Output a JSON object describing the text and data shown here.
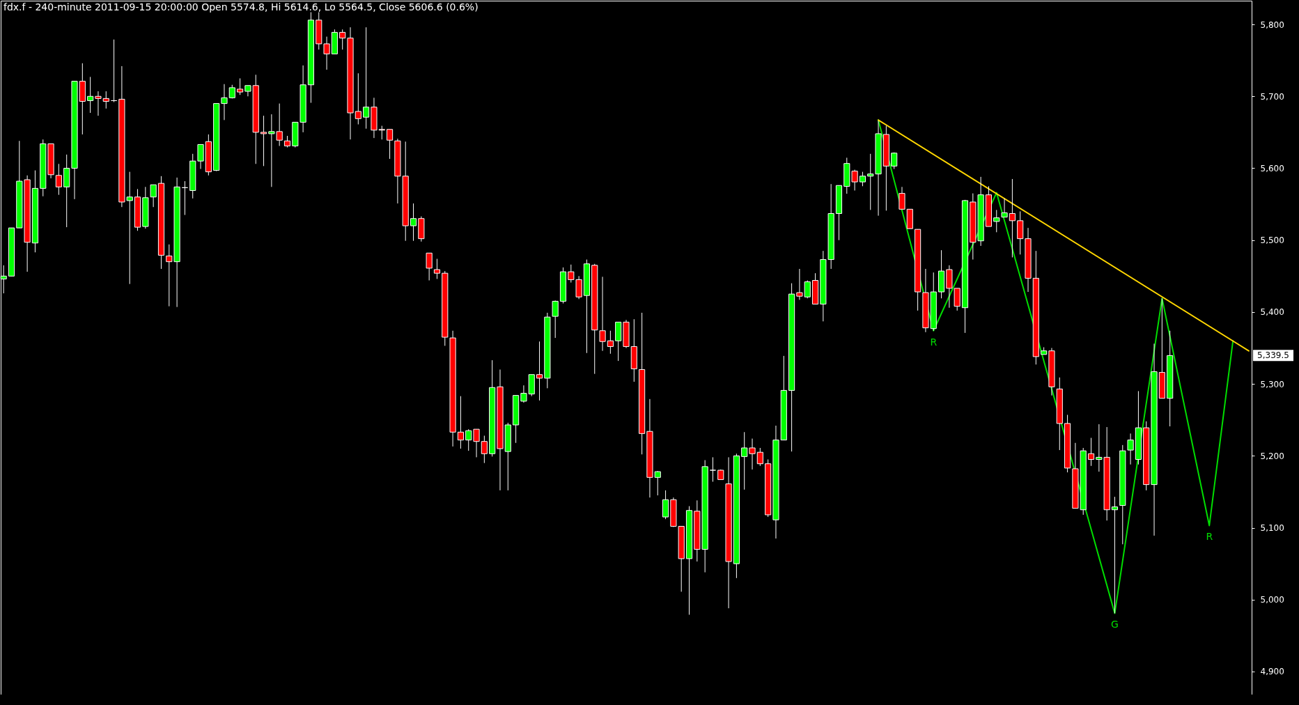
{
  "chart_data": {
    "type": "candlestick",
    "title": "fdx.f - 240-minute 2011-09-15 20:00:00 Open 5574.8, Hi 5614.6, Lo 5564.5, Close 5606.6 (0.6%)",
    "categories": [
      null,
      null,
      null,
      null,
      null,
      null,
      null,
      null,
      null,
      null,
      null,
      null,
      null,
      null,
      null,
      null,
      null,
      null,
      null,
      null,
      null,
      null,
      null,
      null,
      null,
      null,
      null,
      null,
      null,
      null,
      null,
      null,
      null,
      null,
      null,
      null,
      null,
      null,
      null,
      null,
      null,
      null,
      null,
      null,
      null,
      null,
      null,
      null,
      null,
      null,
      null,
      null,
      null,
      null,
      null,
      null,
      null,
      null,
      null,
      null,
      null,
      null,
      null,
      null,
      null,
      null,
      null,
      null,
      null,
      null,
      null,
      null,
      null,
      null,
      null,
      null,
      null,
      null,
      null,
      null,
      null,
      null,
      null,
      null,
      null,
      null,
      null,
      null,
      null,
      null,
      null,
      null,
      null,
      null,
      null,
      null,
      null,
      null,
      null,
      null,
      null,
      null,
      null,
      null,
      null,
      null,
      null,
      null,
      null,
      null,
      null,
      null,
      null,
      null,
      null,
      null,
      null,
      null,
      null,
      null,
      null,
      null,
      null,
      null,
      null,
      null,
      null,
      null,
      null,
      null,
      null,
      null,
      null,
      null,
      null,
      null,
      null,
      null,
      null,
      null,
      null,
      null,
      null,
      null,
      null,
      null,
      null,
      null,
      null,
      null,
      null,
      null,
      null,
      null,
      null,
      null,
      null,
      null,
      null
    ],
    "ohlc": [
      [
        5446,
        5465,
        5426,
        5450
      ],
      [
        5450,
        5517,
        5450,
        5517
      ],
      [
        5517,
        5638,
        5517,
        5582
      ],
      [
        5584,
        5590,
        5456,
        5497
      ],
      [
        5496,
        5597,
        5483,
        5572
      ],
      [
        5572,
        5640,
        5561,
        5634
      ],
      [
        5634,
        5634,
        5586,
        5591
      ],
      [
        5590,
        5606,
        5563,
        5574
      ],
      [
        5574,
        5619,
        5518,
        5600
      ],
      [
        5600,
        5721,
        5557,
        5721
      ],
      [
        5721,
        5746,
        5647,
        5693
      ],
      [
        5694,
        5727,
        5677,
        5700
      ],
      [
        5700,
        5707,
        5673,
        5697
      ],
      [
        5697,
        5707,
        5683,
        5693
      ],
      [
        5694,
        5779,
        5692,
        5694
      ],
      [
        5696,
        5742,
        5546,
        5553
      ],
      [
        5555,
        5595,
        5439,
        5560
      ],
      [
        5560,
        5571,
        5513,
        5518
      ],
      [
        5519,
        5574,
        5516,
        5559
      ],
      [
        5560,
        5577,
        5546,
        5577
      ],
      [
        5579,
        5589,
        5460,
        5479
      ],
      [
        5478,
        5494,
        5408,
        5470
      ],
      [
        5470,
        5587,
        5407,
        5574
      ],
      [
        5573,
        5582,
        5535,
        5573
      ],
      [
        5569,
        5620,
        5558,
        5610
      ],
      [
        5610,
        5633,
        5599,
        5633
      ],
      [
        5637,
        5647,
        5590,
        5595
      ],
      [
        5597,
        5690,
        5596,
        5690
      ],
      [
        5690,
        5717,
        5667,
        5698
      ],
      [
        5698,
        5716,
        5697,
        5712
      ],
      [
        5710,
        5725,
        5702,
        5706
      ],
      [
        5707,
        5715,
        5700,
        5715
      ],
      [
        5715,
        5730,
        5606,
        5650
      ],
      [
        5650,
        5673,
        5603,
        5648
      ],
      [
        5648,
        5675,
        5574,
        5651
      ],
      [
        5651,
        5690,
        5631,
        5639
      ],
      [
        5638,
        5645,
        5629,
        5631
      ],
      [
        5631,
        5664,
        5629,
        5664
      ],
      [
        5664,
        5743,
        5650,
        5716
      ],
      [
        5716,
        5817,
        5691,
        5806
      ],
      [
        5806,
        5817,
        5765,
        5773
      ],
      [
        5773,
        5783,
        5737,
        5759
      ],
      [
        5759,
        5793,
        5759,
        5789
      ],
      [
        5789,
        5793,
        5765,
        5781
      ],
      [
        5781,
        5796,
        5640,
        5677
      ],
      [
        5679,
        5732,
        5661,
        5669
      ],
      [
        5671,
        5796,
        5655,
        5685
      ],
      [
        5685,
        5698,
        5642,
        5653
      ],
      [
        5654,
        5659,
        5640,
        5653
      ],
      [
        5654,
        5654,
        5613,
        5639
      ],
      [
        5638,
        5641,
        5551,
        5589
      ],
      [
        5589,
        5637,
        5499,
        5520
      ],
      [
        5520,
        5551,
        5499,
        5530
      ],
      [
        5530,
        5533,
        5498,
        5502
      ],
      [
        5482,
        5482,
        5444,
        5461
      ],
      [
        5459,
        5474,
        5446,
        5454
      ],
      [
        5454,
        5457,
        5353,
        5365
      ],
      [
        5364,
        5374,
        5213,
        5233
      ],
      [
        5233,
        5283,
        5210,
        5222
      ],
      [
        5222,
        5237,
        5207,
        5235
      ],
      [
        5237,
        5237,
        5198,
        5220
      ],
      [
        5220,
        5228,
        5190,
        5203
      ],
      [
        5203,
        5333,
        5199,
        5295
      ],
      [
        5296,
        5320,
        5152,
        5210
      ],
      [
        5206,
        5246,
        5152,
        5243
      ],
      [
        5243,
        5284,
        5218,
        5284
      ],
      [
        5276,
        5298,
        5274,
        5287
      ],
      [
        5286,
        5313,
        5283,
        5313
      ],
      [
        5313,
        5359,
        5277,
        5308
      ],
      [
        5308,
        5399,
        5294,
        5393
      ],
      [
        5394,
        5416,
        5364,
        5415
      ],
      [
        5415,
        5462,
        5412,
        5456
      ],
      [
        5456,
        5466,
        5441,
        5445
      ],
      [
        5445,
        5450,
        5418,
        5421
      ],
      [
        5423,
        5473,
        5343,
        5467
      ],
      [
        5465,
        5467,
        5314,
        5375
      ],
      [
        5374,
        5449,
        5346,
        5359
      ],
      [
        5360,
        5374,
        5342,
        5352
      ],
      [
        5360,
        5386,
        5332,
        5386
      ],
      [
        5386,
        5389,
        5350,
        5352
      ],
      [
        5352,
        5390,
        5303,
        5321
      ],
      [
        5320,
        5399,
        5202,
        5231
      ],
      [
        5234,
        5279,
        5142,
        5170
      ],
      [
        5170,
        5179,
        5145,
        5178
      ],
      [
        5115,
        5152,
        5112,
        5139
      ],
      [
        5139,
        5142,
        5101,
        5102
      ],
      [
        5102,
        5102,
        5011,
        5057
      ],
      [
        5057,
        5130,
        4979,
        5124
      ],
      [
        5123,
        5138,
        5053,
        5070
      ],
      [
        5070,
        5194,
        5038,
        5185
      ],
      [
        5180,
        5198,
        5164,
        5180
      ],
      [
        5180,
        5181,
        5167,
        5167
      ],
      [
        5161,
        5198,
        4988,
        5053
      ],
      [
        5050,
        5203,
        5030,
        5200
      ],
      [
        5199,
        5233,
        5153,
        5211
      ],
      [
        5211,
        5224,
        5181,
        5203
      ],
      [
        5205,
        5211,
        5186,
        5189
      ],
      [
        5189,
        5195,
        5115,
        5118
      ],
      [
        5111,
        5242,
        5085,
        5222
      ],
      [
        5222,
        5339,
        5222,
        5291
      ],
      [
        5291,
        5440,
        5206,
        5425
      ],
      [
        5427,
        5460,
        5417,
        5422
      ],
      [
        5421,
        5444,
        5419,
        5442
      ],
      [
        5444,
        5454,
        5411,
        5411
      ],
      [
        5411,
        5485,
        5387,
        5473
      ],
      [
        5473,
        5578,
        5460,
        5537
      ],
      [
        5537,
        5576,
        5500,
        5576
      ],
      [
        5574.8,
        5614.6,
        5564.5,
        5606.6
      ],
      [
        5596,
        5598,
        5569,
        5581
      ],
      [
        5581,
        5595,
        5575,
        5589
      ],
      [
        5589,
        5620,
        5542,
        5592
      ],
      [
        5592,
        5666,
        5534,
        5648
      ],
      [
        5647,
        5659,
        5541,
        5603
      ],
      [
        5603,
        5622,
        5599,
        5621
      ],
      [
        5565,
        5574,
        5543,
        5543
      ],
      [
        5543,
        5543,
        5516,
        5516
      ],
      [
        5515,
        5515,
        5402,
        5428
      ],
      [
        5427,
        5460,
        5372,
        5378
      ],
      [
        5377,
        5455,
        5374,
        5428
      ],
      [
        5428,
        5486,
        5419,
        5457
      ],
      [
        5459,
        5465,
        5406,
        5433
      ],
      [
        5433,
        5433,
        5402,
        5408
      ],
      [
        5406,
        5556,
        5371,
        5555
      ],
      [
        5553,
        5565,
        5473,
        5497
      ],
      [
        5499,
        5588,
        5492,
        5563
      ],
      [
        5563,
        5575,
        5519,
        5519
      ],
      [
        5526,
        5542,
        5511,
        5531
      ],
      [
        5532,
        5558,
        5532,
        5538
      ],
      [
        5537,
        5585,
        5476,
        5527
      ],
      [
        5527,
        5540,
        5480,
        5502
      ],
      [
        5502,
        5517,
        5428,
        5447
      ],
      [
        5447,
        5485,
        5327,
        5338
      ],
      [
        5341,
        5351,
        5341,
        5346
      ],
      [
        5346,
        5350,
        5284,
        5296
      ],
      [
        5293,
        5309,
        5208,
        5245
      ],
      [
        5245,
        5257,
        5177,
        5183
      ],
      [
        5182,
        5218,
        5127,
        5127
      ],
      [
        5125,
        5211,
        5118,
        5207
      ],
      [
        5203,
        5225,
        5186,
        5195
      ],
      [
        5195,
        5244,
        5178,
        5198
      ],
      [
        5198,
        5240,
        5110,
        5125
      ],
      [
        5125,
        5143,
        4981,
        5129
      ],
      [
        5131,
        5215,
        5077,
        5207
      ],
      [
        5208,
        5231,
        5188,
        5222
      ],
      [
        5195,
        5290,
        5188,
        5239
      ],
      [
        5239,
        5248,
        5152,
        5160
      ],
      [
        5160,
        5356,
        5089,
        5317
      ],
      [
        5316,
        5419,
        5280,
        5280
      ],
      [
        5280,
        5374,
        5241,
        5339.5
      ],
      null,
      null,
      null,
      null,
      null,
      null,
      null,
      null,
      null,
      null
    ],
    "colors": [
      "#00ff00",
      "#00ff00",
      "#00ff00",
      "#ff0000",
      "#00ff00",
      "#00ff00",
      "#ff0000",
      "#ff0000",
      "#00ff00",
      "#00ff00",
      "#ff0000",
      "#00ff00",
      "#ff0000",
      "#ff0000",
      "#ffffff",
      "#ff0000",
      "#00ff00",
      "#ff0000",
      "#00ff00",
      "#00ff00",
      "#ff0000",
      "#ff0000",
      "#00ff00",
      "#ffffff",
      "#00ff00",
      "#00ff00",
      "#ff0000",
      "#00ff00",
      "#00ff00",
      "#00ff00",
      "#ff0000",
      "#00ff00",
      "#ff0000",
      "#ff0000",
      "#00ff00",
      "#ff0000",
      "#ff0000",
      "#00ff00",
      "#00ff00",
      "#00ff00",
      "#ff0000",
      "#ff0000",
      "#00ff00",
      "#ff0000",
      "#ff0000",
      "#ff0000",
      "#00ff00",
      "#ff0000",
      "#ff0000",
      "#ff0000",
      "#ff0000",
      "#ff0000",
      "#00ff00",
      "#ff0000",
      "#ff0000",
      "#ff0000",
      "#ff0000",
      "#ff0000",
      "#ff0000",
      "#00ff00",
      "#ff0000",
      "#ff0000",
      "#00ff00",
      "#ff0000",
      "#00ff00",
      "#00ff00",
      "#00ff00",
      "#00ff00",
      "#ff0000",
      "#00ff00",
      "#00ff00",
      "#00ff00",
      "#ff0000",
      "#ff0000",
      "#00ff00",
      "#ff0000",
      "#ff0000",
      "#ff0000",
      "#00ff00",
      "#ff0000",
      "#ff0000",
      "#ff0000",
      "#ff0000",
      "#00ff00",
      "#00ff00",
      "#ff0000",
      "#ff0000",
      "#00ff00",
      "#ff0000",
      "#00ff00",
      "#ffffff",
      "#ff0000",
      "#ff0000",
      "#00ff00",
      "#00ff00",
      "#ff0000",
      "#ff0000",
      "#ff0000",
      "#00ff00",
      "#00ff00",
      "#00ff00",
      "#ff0000",
      "#00ff00",
      "#ff0000",
      "#00ff00",
      "#00ff00",
      "#00ff00",
      "#00ff00",
      "#ff0000",
      "#00ff00",
      "#00ff00",
      "#00ff00",
      "#ff0000",
      "#00ff00",
      "#ff0000",
      "#ff0000",
      "#ff0000",
      "#ff0000",
      "#00ff00",
      "#00ff00",
      "#ff0000",
      "#ff0000",
      "#00ff00",
      "#ff0000",
      "#00ff00",
      "#ff0000",
      "#00ff00",
      "#00ff00",
      "#ff0000",
      "#ff0000",
      "#ff0000",
      "#ff0000",
      "#00ff00",
      "#ff0000",
      "#ff0000",
      "#ff0000",
      "#ff0000",
      "#00ff00",
      "#ff0000",
      "#00ff00",
      "#ff0000",
      "#00ff00",
      "#00ff00",
      "#00ff00",
      "#00ff00",
      "#ff0000",
      "#00ff00",
      "#ff0000",
      "#00ff00",
      null,
      null,
      null,
      null,
      null,
      null,
      null,
      null,
      null,
      null
    ],
    "series": [
      {
        "type": "line",
        "color": "#00dd00",
        "values": [
          null,
          null,
          null,
          null,
          null,
          null,
          null,
          null,
          null,
          null,
          null,
          null,
          null,
          null,
          null,
          null,
          null,
          null,
          null,
          null,
          null,
          null,
          null,
          null,
          null,
          null,
          null,
          null,
          null,
          null,
          null,
          null,
          null,
          null,
          null,
          null,
          null,
          null,
          null,
          null,
          null,
          null,
          null,
          null,
          null,
          null,
          null,
          null,
          null,
          null,
          null,
          null,
          null,
          null,
          null,
          null,
          null,
          null,
          null,
          null,
          null,
          null,
          null,
          null,
          null,
          null,
          null,
          null,
          null,
          null,
          null,
          null,
          null,
          null,
          null,
          null,
          null,
          null,
          null,
          null,
          null,
          null,
          null,
          null,
          null,
          null,
          null,
          null,
          null,
          null,
          null,
          null,
          null,
          null,
          null,
          null,
          null,
          null,
          null,
          null,
          null,
          null,
          null,
          null,
          null,
          null,
          null,
          null,
          null,
          null,
          null,
          5667,
          null,
          null,
          null,
          null,
          null,
          null,
          5374,
          null,
          null,
          null,
          null,
          null,
          null,
          null,
          5566,
          null,
          null,
          null,
          null,
          null,
          null,
          null,
          null,
          null,
          null,
          null,
          null,
          null,
          null,
          4981,
          null,
          null,
          null,
          null,
          null,
          5419,
          null,
          null,
          null,
          null,
          null,
          5103,
          null,
          null,
          5360,
          null,
          null
        ]
      },
      {
        "type": "line",
        "color": "#ffd700",
        "values": [
          null,
          null,
          null,
          null,
          null,
          null,
          null,
          null,
          null,
          null,
          null,
          null,
          null,
          null,
          null,
          null,
          null,
          null,
          null,
          null,
          null,
          null,
          null,
          null,
          null,
          null,
          null,
          null,
          null,
          null,
          null,
          null,
          null,
          null,
          null,
          null,
          null,
          null,
          null,
          null,
          null,
          null,
          null,
          null,
          null,
          null,
          null,
          null,
          null,
          null,
          null,
          null,
          null,
          null,
          null,
          null,
          null,
          null,
          null,
          null,
          null,
          null,
          null,
          null,
          null,
          null,
          null,
          null,
          null,
          null,
          null,
          null,
          null,
          null,
          null,
          null,
          null,
          null,
          null,
          null,
          null,
          null,
          null,
          null,
          null,
          null,
          null,
          null,
          null,
          null,
          null,
          null,
          null,
          null,
          null,
          null,
          null,
          null,
          null,
          null,
          null,
          null,
          null,
          null,
          null,
          null,
          null,
          null,
          null,
          null,
          null,
          5667,
          null,
          null,
          null,
          null,
          null,
          null,
          null,
          null,
          null,
          null,
          null,
          null,
          null,
          null,
          null,
          null,
          null,
          null,
          null,
          null,
          null,
          null,
          null,
          null,
          null,
          null,
          null,
          null,
          null,
          null,
          null,
          null,
          null,
          null,
          null,
          null,
          null,
          null,
          null,
          null,
          null,
          null,
          null,
          null,
          null,
          null,
          5346
        ]
      }
    ],
    "annotations": [
      {
        "text": "R",
        "y": 5374
      },
      {
        "text": "G",
        "y": 4981
      },
      {
        "text": "R",
        "y": 5103
      }
    ],
    "ref_lines": [
      {
        "axis": "y",
        "value": 5339.5,
        "label": "5,339.5"
      }
    ],
    "ylim": [
      4868,
      5833
    ],
    "yticks": [
      {
        "value": 4900,
        "label": "4,900"
      },
      {
        "value": 5000,
        "label": "5,000"
      },
      {
        "value": 5100,
        "label": "5,100"
      },
      {
        "value": 5200,
        "label": "5,200"
      },
      {
        "value": 5300,
        "label": "5,300"
      },
      {
        "value": 5400,
        "label": "5,400"
      },
      {
        "value": 5500,
        "label": "5,500"
      },
      {
        "value": 5600,
        "label": "5,600"
      },
      {
        "value": 5700,
        "label": "5,700"
      },
      {
        "value": 5800,
        "label": "5,800"
      }
    ],
    "tick_labels": "y"
  }
}
